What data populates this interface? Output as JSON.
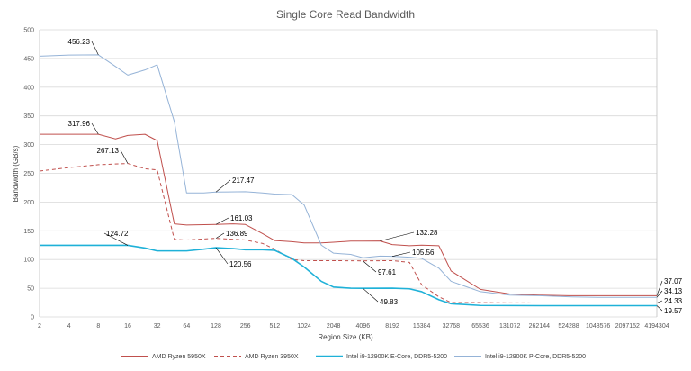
{
  "chart_data": {
    "type": "line",
    "title": "Single Core Read Bandwidth",
    "xlabel": "Region Size (KB)",
    "ylabel": "Bandwidth (GB/s)",
    "x_scale": "log2",
    "x_ticks": [
      "2",
      "4",
      "8",
      "16",
      "32",
      "64",
      "128",
      "256",
      "512",
      "1024",
      "2048",
      "4096",
      "8192",
      "16384",
      "32768",
      "65536",
      "131072",
      "262144",
      "524288",
      "1048576",
      "2097152",
      "4194304"
    ],
    "y_ticks": [
      "0",
      "50",
      "100",
      "150",
      "200",
      "250",
      "300",
      "350",
      "400",
      "450",
      "500"
    ],
    "ylim": [
      0,
      500
    ],
    "grid": true,
    "legend_position": "bottom",
    "colors": {
      "gridline": "#d9d9d9",
      "plot_border": "#bfbfbf"
    },
    "series": [
      {
        "name": "AMD Ryzen 5950X",
        "color": "#c0504d",
        "dash": "solid",
        "width": 1,
        "points": [
          [
            2,
            318
          ],
          [
            4,
            318
          ],
          [
            8,
            318
          ],
          [
            12,
            310
          ],
          [
            16,
            316
          ],
          [
            24,
            318
          ],
          [
            32,
            307
          ],
          [
            48,
            162
          ],
          [
            64,
            160
          ],
          [
            128,
            161.03
          ],
          [
            192,
            162
          ],
          [
            256,
            161
          ],
          [
            384,
            145
          ],
          [
            512,
            133
          ],
          [
            768,
            131
          ],
          [
            1024,
            129
          ],
          [
            1536,
            129
          ],
          [
            2048,
            130
          ],
          [
            3072,
            132
          ],
          [
            4096,
            132
          ],
          [
            6144,
            132.28
          ],
          [
            8192,
            126
          ],
          [
            12288,
            124
          ],
          [
            16384,
            125
          ],
          [
            24576,
            124
          ],
          [
            32768,
            80
          ],
          [
            65536,
            48
          ],
          [
            131072,
            40
          ],
          [
            262144,
            38
          ],
          [
            524288,
            37
          ],
          [
            1048576,
            37
          ],
          [
            2097152,
            37.07
          ],
          [
            4194304,
            37.07
          ]
        ]
      },
      {
        "name": "AMD Ryzen 3950X",
        "color": "#c0504d",
        "dash": "dashed",
        "width": 1,
        "points": [
          [
            2,
            254
          ],
          [
            4,
            260
          ],
          [
            8,
            265
          ],
          [
            16,
            267.13
          ],
          [
            24,
            258
          ],
          [
            32,
            256
          ],
          [
            48,
            135
          ],
          [
            64,
            134
          ],
          [
            128,
            136.89
          ],
          [
            256,
            134
          ],
          [
            384,
            128
          ],
          [
            512,
            118
          ],
          [
            768,
            100
          ],
          [
            1024,
            98
          ],
          [
            2048,
            98
          ],
          [
            4096,
            97.61
          ],
          [
            8192,
            98
          ],
          [
            12288,
            95
          ],
          [
            16384,
            56
          ],
          [
            24576,
            35
          ],
          [
            32768,
            25
          ],
          [
            65536,
            25
          ],
          [
            131072,
            24.5
          ],
          [
            262144,
            24.33
          ],
          [
            524288,
            24.33
          ],
          [
            1048576,
            24.33
          ],
          [
            2097152,
            24.33
          ],
          [
            4194304,
            24.33
          ]
        ]
      },
      {
        "name": "Intel i9-12900K E-Core, DDR5-5200",
        "color": "#1fb1d8",
        "dash": "solid",
        "width": 1.6,
        "points": [
          [
            2,
            124.72
          ],
          [
            4,
            124.72
          ],
          [
            8,
            124.72
          ],
          [
            16,
            124.72
          ],
          [
            24,
            120
          ],
          [
            32,
            115
          ],
          [
            64,
            115
          ],
          [
            96,
            118
          ],
          [
            128,
            120.56
          ],
          [
            192,
            119
          ],
          [
            256,
            117
          ],
          [
            384,
            117
          ],
          [
            512,
            116
          ],
          [
            768,
            102
          ],
          [
            1024,
            87
          ],
          [
            1536,
            62
          ],
          [
            2048,
            52
          ],
          [
            3072,
            50
          ],
          [
            4096,
            49.83
          ],
          [
            8192,
            50
          ],
          [
            12288,
            49
          ],
          [
            16384,
            44
          ],
          [
            24576,
            30
          ],
          [
            32768,
            23
          ],
          [
            65536,
            20
          ],
          [
            131072,
            19.8
          ],
          [
            262144,
            19.6
          ],
          [
            524288,
            19.57
          ],
          [
            1048576,
            19.57
          ],
          [
            2097152,
            19.57
          ],
          [
            4194304,
            19.57
          ]
        ]
      },
      {
        "name": "Intel i9-12900K P-Core, DDR5-5200",
        "color": "#95b3d7",
        "dash": "solid",
        "width": 1,
        "points": [
          [
            2,
            454
          ],
          [
            4,
            456
          ],
          [
            8,
            456.23
          ],
          [
            12,
            436
          ],
          [
            16,
            421
          ],
          [
            24,
            430
          ],
          [
            32,
            439
          ],
          [
            48,
            340
          ],
          [
            64,
            216
          ],
          [
            96,
            216
          ],
          [
            128,
            217.47
          ],
          [
            256,
            218
          ],
          [
            384,
            216
          ],
          [
            512,
            214
          ],
          [
            768,
            213
          ],
          [
            1024,
            195
          ],
          [
            1536,
            125
          ],
          [
            2048,
            111
          ],
          [
            3072,
            109
          ],
          [
            4096,
            103
          ],
          [
            6144,
            106
          ],
          [
            8192,
            105.56
          ],
          [
            12288,
            104
          ],
          [
            16384,
            102
          ],
          [
            24576,
            85
          ],
          [
            32768,
            62
          ],
          [
            65536,
            44
          ],
          [
            131072,
            38
          ],
          [
            262144,
            37
          ],
          [
            524288,
            35
          ],
          [
            1048576,
            34.13
          ],
          [
            2097152,
            34.13
          ],
          [
            4194304,
            34.13
          ]
        ]
      }
    ],
    "annotations": [
      {
        "text": "456.23"
      },
      {
        "text": "317.96"
      },
      {
        "text": "267.13"
      },
      {
        "text": "217.47"
      },
      {
        "text": "161.03"
      },
      {
        "text": "136.89"
      },
      {
        "text": "124.72"
      },
      {
        "text": "120.56"
      },
      {
        "text": "132.28"
      },
      {
        "text": "105.56"
      },
      {
        "text": "97.61"
      },
      {
        "text": "49.83"
      },
      {
        "text": "37.07"
      },
      {
        "text": "34.13"
      },
      {
        "text": "24.33"
      },
      {
        "text": "19.57"
      }
    ]
  }
}
